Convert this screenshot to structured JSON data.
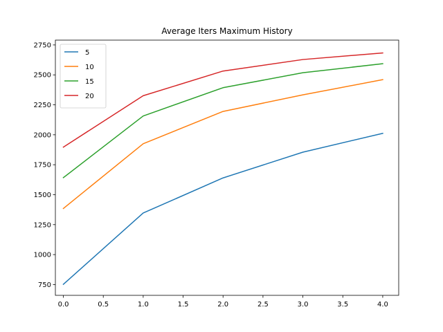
{
  "chart_data": {
    "type": "line",
    "title": "Average Iters Maximum History",
    "xlabel": "",
    "ylabel": "",
    "x": [
      0,
      1,
      2,
      3,
      4
    ],
    "xlim": [
      -0.1,
      4.2
    ],
    "ylim": [
      660,
      2790
    ],
    "xticks": [
      0.0,
      0.5,
      1.0,
      1.5,
      2.0,
      2.5,
      3.0,
      3.5,
      4.0
    ],
    "xtick_labels": [
      "0.0",
      "0.5",
      "1.0",
      "1.5",
      "2.0",
      "2.5",
      "3.0",
      "3.5",
      "4.0"
    ],
    "yticks": [
      750,
      1000,
      1250,
      1500,
      1750,
      2000,
      2250,
      2500,
      2750
    ],
    "ytick_labels": [
      "750",
      "1000",
      "1250",
      "1500",
      "1750",
      "2000",
      "2250",
      "2500",
      "2750"
    ],
    "grid": false,
    "legend_position": "upper-left",
    "series": [
      {
        "name": "5",
        "color": "#1f77b4",
        "values": [
          752,
          1347,
          1640,
          1855,
          2012
        ]
      },
      {
        "name": "10",
        "color": "#ff7f0e",
        "values": [
          1385,
          1925,
          2195,
          2333,
          2460
        ]
      },
      {
        "name": "15",
        "color": "#2ca02c",
        "values": [
          1642,
          2157,
          2393,
          2518,
          2593
        ]
      },
      {
        "name": "20",
        "color": "#d62728",
        "values": [
          1897,
          2326,
          2532,
          2628,
          2683
        ]
      }
    ]
  }
}
